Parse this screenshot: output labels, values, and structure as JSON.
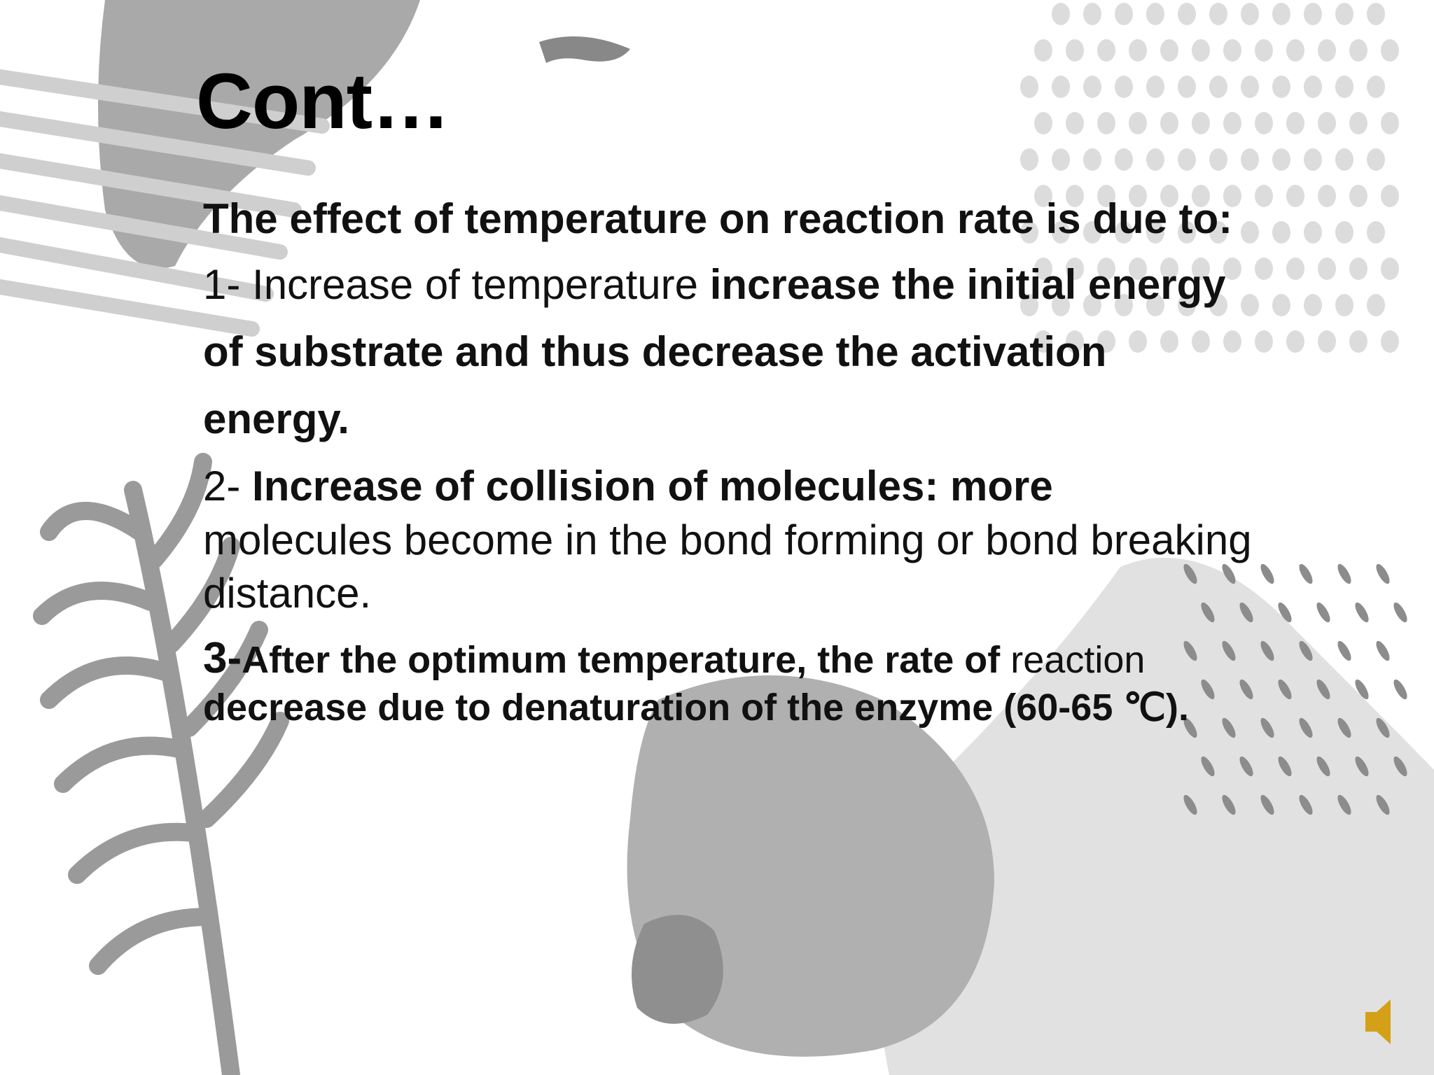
{
  "title": "Cont…",
  "paragraphs": [
    {
      "runs": [
        {
          "text": "The effect of temperature on reaction rate is due to:",
          "bold": true
        }
      ]
    },
    {
      "runs": [
        {
          "text": "1- Increase of temperature ",
          "bold": false
        },
        {
          "text": "increase the initial energy of substrate and thus decrease the activation energy.",
          "bold": true
        }
      ]
    },
    {
      "runs": [
        {
          "text": "2- ",
          "bold": false
        },
        {
          "text": "Increase of collision of molecules: more",
          "bold": true
        },
        {
          "text": " molecules become in the bond forming or bond breaking distance.",
          "bold": false
        }
      ]
    },
    {
      "runs": [
        {
          "text": "3-",
          "bold": true
        },
        {
          "text": "After the optimum temperature, the rate of",
          "bold": true
        },
        {
          "text": " reaction ",
          "bold": false
        },
        {
          "text": "decrease due to denaturation of the enzyme (60-65 ℃).",
          "bold": true
        }
      ]
    }
  ]
}
